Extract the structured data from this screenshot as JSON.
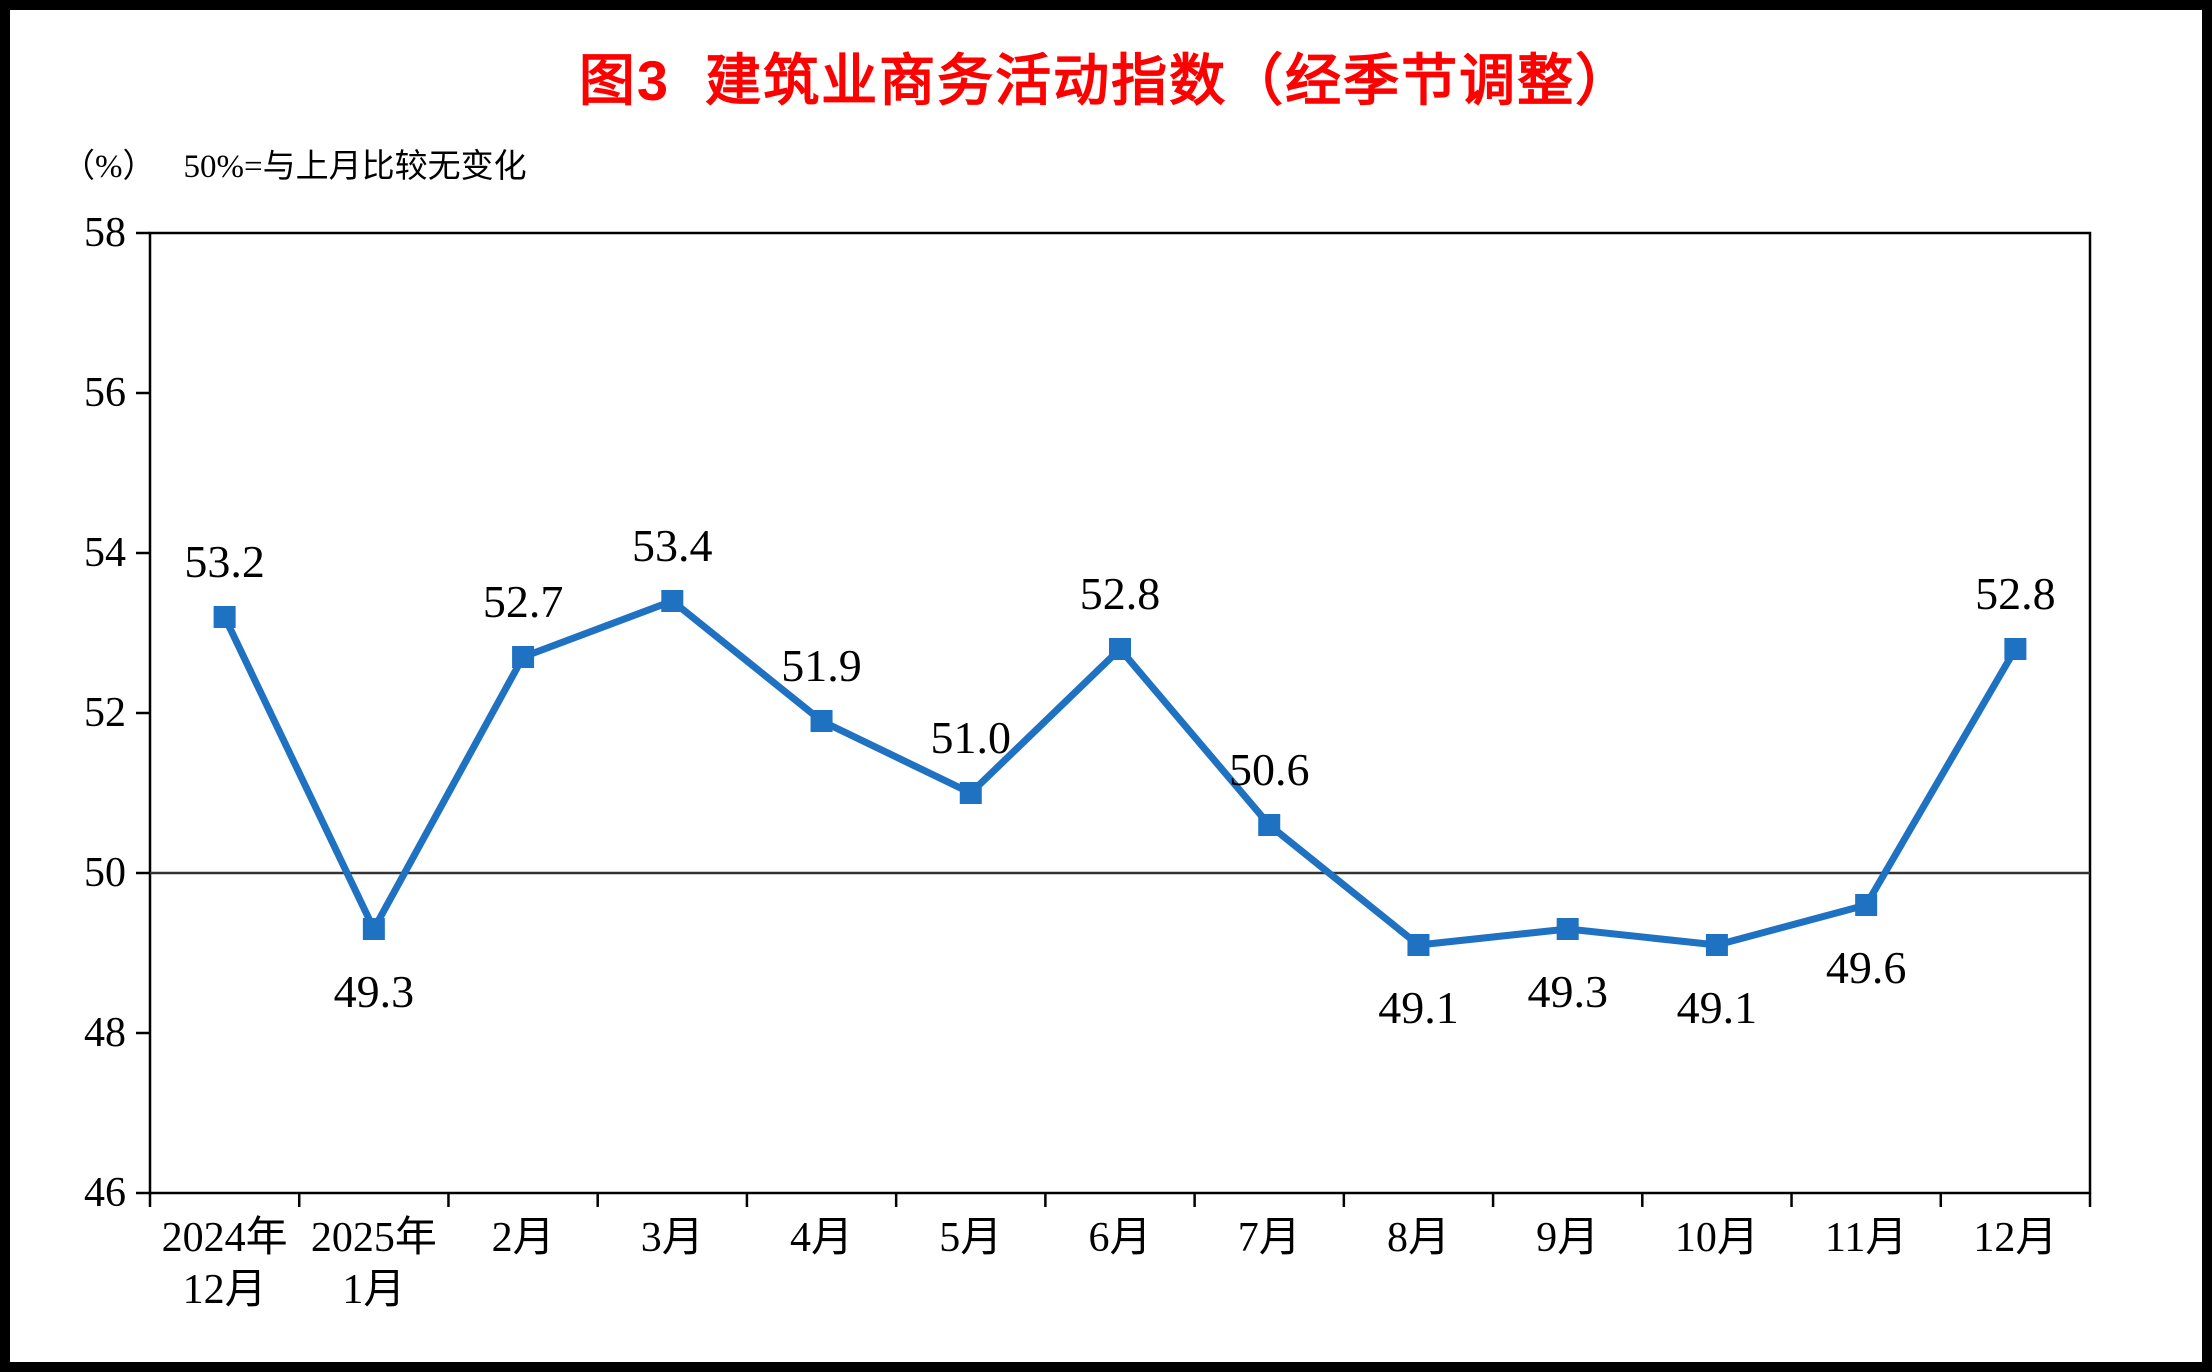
{
  "title": "图3  建筑业商务活动指数（经季节调整）",
  "subtitle": {
    "unit": "（%）",
    "note": "50%=与上月比较无变化"
  },
  "chart_data": {
    "type": "line",
    "title": "图3 建筑业商务活动指数（经季节调整）",
    "xlabel": "",
    "ylabel": "（%）",
    "categories": [
      [
        "2024年",
        "12月"
      ],
      [
        "2025年",
        "1月"
      ],
      [
        "2月"
      ],
      [
        "3月"
      ],
      [
        "4月"
      ],
      [
        "5月"
      ],
      [
        "6月"
      ],
      [
        "7月"
      ],
      [
        "8月"
      ],
      [
        "9月"
      ],
      [
        "10月"
      ],
      [
        "11月"
      ],
      [
        "12月"
      ]
    ],
    "series": [
      {
        "name": "建筑业商务活动指数",
        "values": [
          53.2,
          49.3,
          52.7,
          53.4,
          51.9,
          51.0,
          52.8,
          50.6,
          49.1,
          49.3,
          49.1,
          49.6,
          52.8
        ]
      }
    ],
    "data_labels": [
      "53.2",
      "49.3",
      "52.7",
      "53.4",
      "51.9",
      "51.0",
      "52.8",
      "50.6",
      "49.1",
      "49.3",
      "49.1",
      "49.6",
      "52.8"
    ],
    "ylim": [
      46,
      58
    ],
    "yticks": [
      46,
      48,
      50,
      52,
      54,
      56,
      58
    ],
    "reference_line": 50,
    "grid": false,
    "legend_position": "none",
    "marker": "square",
    "line_color": "#1f71c2",
    "marker_color": "#1f71c2",
    "reference_line_color": "#333333",
    "axis_color": "#000000"
  }
}
